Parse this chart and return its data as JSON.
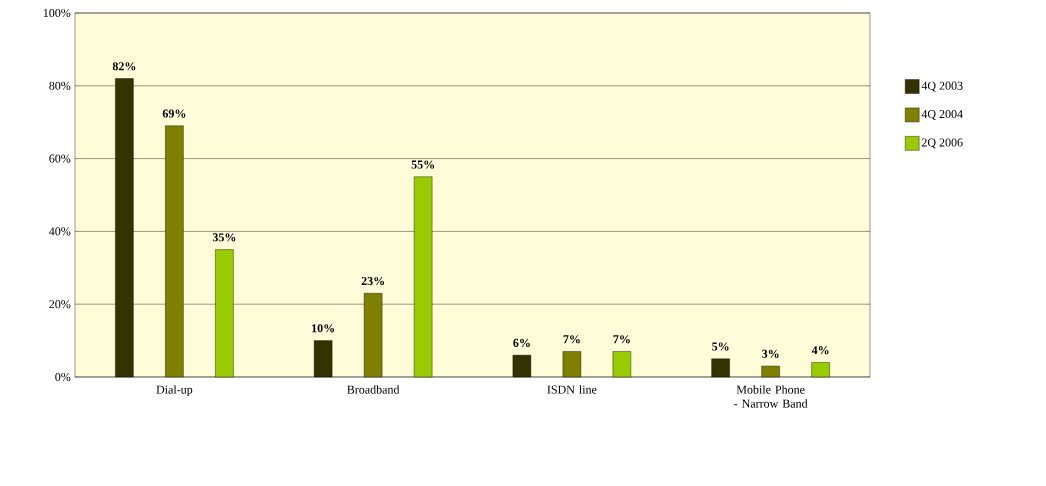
{
  "chart_data": {
    "type": "bar",
    "categories": [
      "Dial-up",
      "Broadband",
      "ISDN line",
      "Mobile Phone - Narrow Band"
    ],
    "series": [
      {
        "name": "4Q 2003",
        "color": "#333300",
        "values": [
          82,
          10,
          6,
          5
        ],
        "value_labels": [
          "82%",
          "10%",
          "6%",
          "5%"
        ]
      },
      {
        "name": "4Q 2004",
        "color": "#808000",
        "values": [
          69,
          23,
          7,
          3
        ],
        "value_labels": [
          "69%",
          "23%",
          "7%",
          "3%"
        ]
      },
      {
        "name": "2Q 2006",
        "color": "#99cc00",
        "values": [
          35,
          55,
          7,
          4
        ],
        "value_labels": [
          "35%",
          "55%",
          "7%",
          "4%"
        ]
      }
    ],
    "ylim": [
      0,
      100
    ],
    "yticks": [
      {
        "value": 0,
        "label": "0%"
      },
      {
        "value": 20,
        "label": "20%"
      },
      {
        "value": 40,
        "label": "40%"
      },
      {
        "value": 60,
        "label": "60%"
      },
      {
        "value": 80,
        "label": "80%"
      },
      {
        "value": 100,
        "label": "100%"
      }
    ],
    "grid": "y",
    "legend": "right"
  }
}
